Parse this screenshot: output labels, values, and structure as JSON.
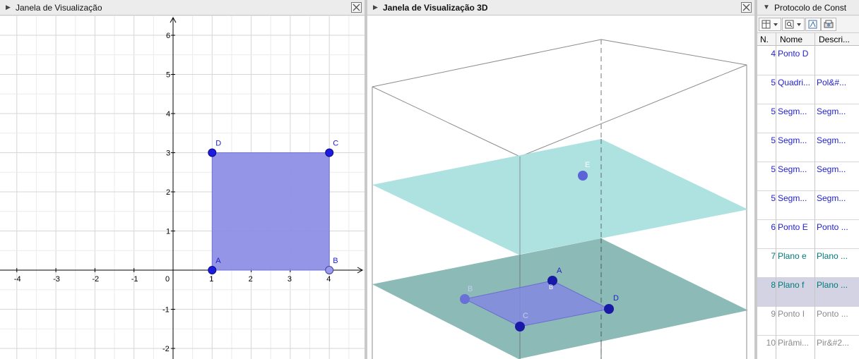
{
  "view2d": {
    "title": "Janela de Visualização",
    "x_ticks": [
      "-4",
      "-3",
      "-2",
      "-1",
      "0",
      "1",
      "2",
      "3",
      "4"
    ],
    "y_ticks": [
      "6",
      "5",
      "4",
      "3",
      "2",
      "1",
      "-1",
      "-2"
    ],
    "points": [
      {
        "label": "A",
        "x": 1,
        "y": 0
      },
      {
        "label": "B",
        "x": 4,
        "y": 0
      },
      {
        "label": "C",
        "x": 4,
        "y": 3
      },
      {
        "label": "D",
        "x": 1,
        "y": 3
      }
    ],
    "polygon_color": "#8e8fe6",
    "point_color": "#1c1ce0"
  },
  "view3d": {
    "title": "Janela de Visualização 3D",
    "point_labels": {
      "A": "A",
      "B": "B",
      "C": "C",
      "D": "D",
      "E": "E"
    },
    "plane_upper_color": "#a9e0df",
    "plane_lower_color": "#86b6b2"
  },
  "protocol": {
    "title": "Protocolo de Const",
    "columns": [
      "N.",
      "Nome",
      "Descri..."
    ],
    "rows": [
      {
        "n": "4",
        "nome": "Ponto D",
        "desc": "",
        "style": "blue"
      },
      {
        "n": "5",
        "nome": "Quadri...",
        "desc": "Pol&#...",
        "style": "blue"
      },
      {
        "n": "5",
        "nome": "Segm...",
        "desc": "Segm...",
        "style": "blue"
      },
      {
        "n": "5",
        "nome": "Segm...",
        "desc": "Segm...",
        "style": "blue"
      },
      {
        "n": "5",
        "nome": "Segm...",
        "desc": "Segm...",
        "style": "blue"
      },
      {
        "n": "5",
        "nome": "Segm...",
        "desc": "Segm...",
        "style": "blue"
      },
      {
        "n": "6",
        "nome": "Ponto E",
        "desc": "Ponto ...",
        "style": "blue"
      },
      {
        "n": "7",
        "nome": "Plano e",
        "desc": "Plano ...",
        "style": "teal"
      },
      {
        "n": "8",
        "nome": "Plano f",
        "desc": "Plano ...",
        "style": "teal",
        "selected": true
      },
      {
        "n": "9",
        "nome": "Ponto I",
        "desc": "Ponto ...",
        "style": "grey"
      },
      {
        "n": "10",
        "nome": "Pirâmi...",
        "desc": "Pir&#2...",
        "style": "grey"
      }
    ]
  }
}
